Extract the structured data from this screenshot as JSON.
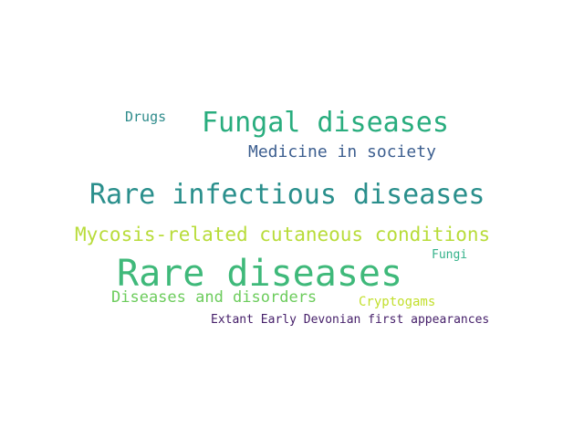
{
  "words": [
    {
      "text": "Rare diseases",
      "color": "#3fb97a"
    },
    {
      "text": "Rare infectious diseases",
      "color": "#2a8f8c"
    },
    {
      "text": "Fungal diseases",
      "color": "#29ad7e"
    },
    {
      "text": "Mycosis-related cutaneous conditions",
      "color": "#b8dc3a"
    },
    {
      "text": "Medicine in society",
      "color": "#3c5e8f"
    },
    {
      "text": "Diseases and disorders",
      "color": "#6ccc5c"
    },
    {
      "text": "Drugs",
      "color": "#2f8c8c"
    },
    {
      "text": "Cryptogams",
      "color": "#c2df2c"
    },
    {
      "text": "Fungi",
      "color": "#33b28a"
    },
    {
      "text": "Extant Early Devonian first appearances",
      "color": "#46206a"
    }
  ]
}
